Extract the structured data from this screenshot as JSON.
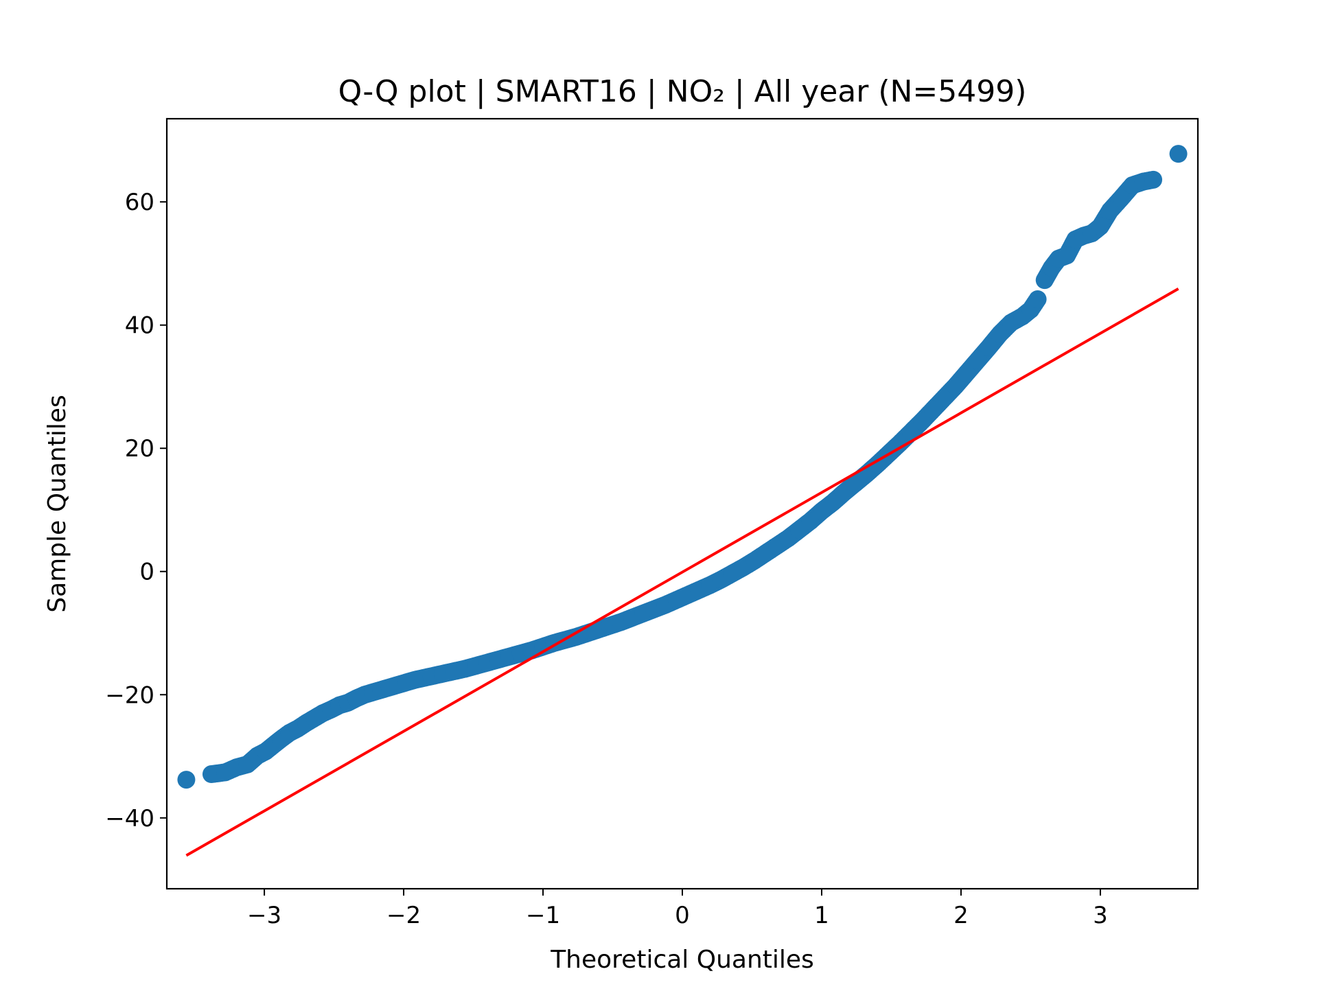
{
  "chart_data": {
    "type": "scatter",
    "title": "Q-Q plot | SMART16 | NO₂ | All year (N=5499)",
    "xlabel": "Theoretical Quantiles",
    "ylabel": "Sample Quantiles",
    "xlim": [
      -3.7,
      3.7
    ],
    "ylim": [
      -51.5,
      73.5
    ],
    "xticks": [
      -3,
      -2,
      -1,
      0,
      1,
      2,
      3
    ],
    "xtick_labels": [
      "−3",
      "−2",
      "−1",
      "0",
      "1",
      "2",
      "3"
    ],
    "yticks": [
      -40,
      -20,
      0,
      20,
      40,
      60
    ],
    "ytick_labels": [
      "−40",
      "−20",
      "0",
      "20",
      "40",
      "60"
    ],
    "grid": false,
    "series": [
      {
        "kind": "points",
        "color": "#1f77b4",
        "points": [
          [
            -3.56,
            -33.8
          ],
          [
            -3.38,
            -32.9
          ],
          [
            -3.28,
            -32.6
          ],
          [
            -3.2,
            -31.8
          ],
          [
            -3.12,
            -31.3
          ],
          [
            -3.05,
            -29.9
          ],
          [
            -2.99,
            -29.2
          ],
          [
            -2.93,
            -28.1
          ],
          [
            -2.88,
            -27.2
          ],
          [
            -2.82,
            -26.2
          ],
          [
            -2.76,
            -25.5
          ],
          [
            -2.7,
            -24.6
          ],
          [
            -2.64,
            -23.8
          ],
          [
            -2.58,
            -23.0
          ],
          [
            -2.52,
            -22.4
          ],
          [
            -2.46,
            -21.7
          ],
          [
            -2.4,
            -21.3
          ],
          [
            -2.34,
            -20.6
          ],
          [
            -2.28,
            -20.0
          ],
          [
            -2.22,
            -19.6
          ],
          [
            -2.16,
            -19.2
          ],
          [
            -2.1,
            -18.8
          ],
          [
            -2.04,
            -18.4
          ],
          [
            -1.98,
            -18.0
          ],
          [
            -1.92,
            -17.6
          ],
          [
            -1.86,
            -17.3
          ],
          [
            -1.8,
            -17.0
          ],
          [
            -1.72,
            -16.6
          ],
          [
            -1.64,
            -16.2
          ],
          [
            -1.56,
            -15.8
          ],
          [
            -1.48,
            -15.3
          ],
          [
            -1.4,
            -14.8
          ],
          [
            -1.32,
            -14.3
          ],
          [
            -1.24,
            -13.8
          ],
          [
            -1.16,
            -13.3
          ],
          [
            -1.08,
            -12.8
          ],
          [
            -1.0,
            -12.2
          ],
          [
            -0.92,
            -11.6
          ],
          [
            -0.84,
            -11.1
          ],
          [
            -0.76,
            -10.6
          ],
          [
            -0.68,
            -10.0
          ],
          [
            -0.6,
            -9.4
          ],
          [
            -0.52,
            -8.8
          ],
          [
            -0.44,
            -8.2
          ],
          [
            -0.36,
            -7.5
          ],
          [
            -0.28,
            -6.8
          ],
          [
            -0.2,
            -6.1
          ],
          [
            -0.12,
            -5.4
          ],
          [
            -0.04,
            -4.6
          ],
          [
            0.04,
            -3.8
          ],
          [
            0.12,
            -3.0
          ],
          [
            0.2,
            -2.2
          ],
          [
            0.28,
            -1.3
          ],
          [
            0.36,
            -0.3
          ],
          [
            0.44,
            0.7
          ],
          [
            0.52,
            1.8
          ],
          [
            0.6,
            3.0
          ],
          [
            0.68,
            4.2
          ],
          [
            0.76,
            5.4
          ],
          [
            0.84,
            6.8
          ],
          [
            0.92,
            8.2
          ],
          [
            1.0,
            9.8
          ],
          [
            1.08,
            11.2
          ],
          [
            1.16,
            12.8
          ],
          [
            1.24,
            14.3
          ],
          [
            1.32,
            15.8
          ],
          [
            1.4,
            17.4
          ],
          [
            1.48,
            19.1
          ],
          [
            1.56,
            20.8
          ],
          [
            1.64,
            22.6
          ],
          [
            1.72,
            24.4
          ],
          [
            1.8,
            26.3
          ],
          [
            1.88,
            28.2
          ],
          [
            1.96,
            30.1
          ],
          [
            2.04,
            32.2
          ],
          [
            2.12,
            34.3
          ],
          [
            2.2,
            36.4
          ],
          [
            2.28,
            38.6
          ],
          [
            2.36,
            40.4
          ],
          [
            2.44,
            41.4
          ],
          [
            2.5,
            42.5
          ],
          [
            2.55,
            44.2
          ],
          [
            2.6,
            47.3
          ],
          [
            2.65,
            49.3
          ],
          [
            2.7,
            50.8
          ],
          [
            2.76,
            51.3
          ],
          [
            2.82,
            53.9
          ],
          [
            2.88,
            54.5
          ],
          [
            2.94,
            54.9
          ],
          [
            3.0,
            56.0
          ],
          [
            3.07,
            58.6
          ],
          [
            3.15,
            60.6
          ],
          [
            3.23,
            62.7
          ],
          [
            3.31,
            63.3
          ],
          [
            3.38,
            63.6
          ],
          [
            3.56,
            67.8
          ]
        ]
      },
      {
        "kind": "reference-line",
        "color": "#ff0000",
        "points": [
          [
            -3.56,
            -46.1
          ],
          [
            3.56,
            45.9
          ]
        ]
      }
    ]
  }
}
